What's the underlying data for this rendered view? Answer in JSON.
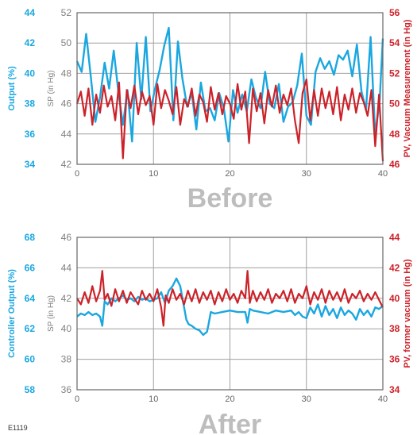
{
  "figure_code": "E1119",
  "colors": {
    "output": "#1aa7e0",
    "pv": "#cc2229",
    "sp_axis": "#808080",
    "grid": "#a0a0a0",
    "heading": "#bdbdbd",
    "frame": "#666666"
  },
  "chart_data": [
    {
      "type": "line",
      "title": "Before",
      "xlim": [
        0,
        40
      ],
      "x_ticks": [
        "0",
        "10",
        "20",
        "30",
        "40"
      ],
      "grid": true,
      "axes": {
        "left_outer": {
          "label": "Output (%)",
          "range": [
            34,
            44
          ],
          "ticks": [
            "34",
            "36",
            "38",
            "40",
            "42",
            "44"
          ]
        },
        "left_inner": {
          "label": "SP (in Hg)",
          "range": [
            42,
            52
          ],
          "ticks": [
            "42",
            "44",
            "46",
            "48",
            "50",
            "52"
          ]
        },
        "right": {
          "label": "PV, Vacuum Measurement (in Hg)",
          "range": [
            46,
            56
          ],
          "ticks": [
            "46",
            "48",
            "50",
            "52",
            "54",
            "56"
          ]
        }
      },
      "series": [
        {
          "axis": "left_outer",
          "color": "#1aa7e0",
          "x": [
            0,
            0.6,
            1.2,
            1.8,
            2.4,
            3,
            3.6,
            4.2,
            4.8,
            5.4,
            6,
            6.6,
            7.2,
            7.8,
            8.4,
            9,
            9.6,
            10.2,
            10.8,
            11.4,
            12,
            12.6,
            13.2,
            13.8,
            14.4,
            15,
            15.6,
            16.2,
            16.8,
            17.4,
            18,
            18.6,
            19.2,
            19.8,
            20.4,
            21,
            21.6,
            22.2,
            22.8,
            23.4,
            24,
            24.6,
            25.2,
            25.8,
            26.4,
            27,
            27.6,
            28.2,
            28.8,
            29.4,
            30,
            30.6,
            31.2,
            31.8,
            32.4,
            33,
            33.6,
            34.2,
            34.8,
            35.4,
            36,
            36.6,
            37.2,
            37.8,
            38.4,
            39,
            39.6,
            40
          ],
          "values": [
            40.8,
            40.1,
            42.6,
            39.8,
            36.8,
            38.4,
            40.7,
            39.0,
            41.5,
            38.8,
            36.6,
            38.9,
            35.5,
            42.0,
            38.3,
            42.4,
            37.5,
            39.0,
            40.2,
            41.8,
            43.0,
            36.9,
            42.1,
            39.6,
            37.8,
            38.7,
            36.3,
            39.4,
            37.5,
            37.7,
            36.9,
            38.7,
            37.7,
            35.5,
            38.9,
            37.4,
            38.6,
            37.5,
            39.6,
            38.4,
            37.7,
            40.1,
            38.0,
            37.7,
            39.3,
            36.8,
            37.8,
            38.1,
            39.2,
            41.3,
            37.2,
            36.6,
            40.1,
            41.0,
            40.3,
            40.8,
            39.9,
            41.2,
            40.9,
            41.5,
            39.8,
            41.9,
            38.8,
            37.6,
            42.4,
            35.9,
            38.3,
            42.3
          ]
        },
        {
          "axis": "right",
          "color": "#cc2229",
          "x": [
            0,
            0.5,
            1,
            1.5,
            2,
            2.5,
            3,
            3.5,
            4,
            4.5,
            5,
            5.5,
            6,
            6.5,
            7,
            7.5,
            8,
            8.5,
            9,
            9.5,
            10,
            10.5,
            11,
            11.5,
            12,
            12.5,
            13,
            13.5,
            14,
            14.5,
            15,
            15.5,
            16,
            16.5,
            17,
            17.5,
            18,
            18.5,
            19,
            19.5,
            20,
            20.5,
            21,
            21.5,
            22,
            22.5,
            23,
            23.5,
            24,
            24.5,
            25,
            25.5,
            26,
            26.5,
            27,
            27.5,
            28,
            28.5,
            29,
            29.5,
            30,
            30.5,
            31,
            31.5,
            32,
            32.5,
            33,
            33.5,
            34,
            34.5,
            35,
            35.5,
            36,
            36.5,
            37,
            37.5,
            38,
            38.5,
            39,
            39.5,
            40
          ],
          "values": [
            50.0,
            50.8,
            49.2,
            51.0,
            48.6,
            50.6,
            49.4,
            51.2,
            49.8,
            50.5,
            48.9,
            51.4,
            46.4,
            50.9,
            49.7,
            51.2,
            49.3,
            50.8,
            49.9,
            50.5,
            48.6,
            51.3,
            49.7,
            50.9,
            50.2,
            49.3,
            51.1,
            48.6,
            50.3,
            49.8,
            51.0,
            49.2,
            50.6,
            50.1,
            48.8,
            51.1,
            49.6,
            50.7,
            49.3,
            50.5,
            50.0,
            49.0,
            51.3,
            49.6,
            50.8,
            47.4,
            51.0,
            49.5,
            50.7,
            48.7,
            50.9,
            49.8,
            51.2,
            49.4,
            50.6,
            49.9,
            51.0,
            48.9,
            47.4,
            50.7,
            51.6,
            48.9,
            50.9,
            49.2,
            51.0,
            49.7,
            50.8,
            49.3,
            51.1,
            48.9,
            50.6,
            49.6,
            51.0,
            49.4,
            50.7,
            50.1,
            49.2,
            50.9,
            47.2,
            50.6,
            46.2
          ]
        }
      ]
    },
    {
      "type": "line",
      "title": "After",
      "xlim": [
        0,
        40
      ],
      "x_ticks": [
        "0",
        "10",
        "20",
        "30",
        "40"
      ],
      "grid": true,
      "axes": {
        "left_outer": {
          "label": "Controller Output (%)",
          "range": [
            58,
            68
          ],
          "ticks": [
            "58",
            "60",
            "62",
            "64",
            "66",
            "68"
          ]
        },
        "left_inner": {
          "label": "SP (in Hg)",
          "range": [
            36,
            46
          ],
          "ticks": [
            "36",
            "38",
            "40",
            "42",
            "44",
            "46"
          ]
        },
        "right": {
          "label": "PV, former vacuum (in Hg)",
          "range": [
            34,
            44
          ],
          "ticks": [
            "34",
            "36",
            "38",
            "40",
            "42",
            "44"
          ]
        }
      },
      "series": [
        {
          "axis": "left_outer",
          "color": "#1aa7e0",
          "x": [
            0,
            0.5,
            1,
            1.5,
            2,
            2.5,
            3,
            3.3,
            3.6,
            4,
            4.5,
            5,
            5.5,
            6,
            6.5,
            7,
            7.5,
            8,
            8.5,
            9,
            9.5,
            10,
            10.5,
            11,
            11.5,
            12,
            12.5,
            13,
            13.5,
            14,
            14.3,
            14.6,
            15,
            15.5,
            16,
            16.5,
            17,
            17.2,
            17.5,
            18,
            19,
            20,
            21,
            22,
            22.3,
            22.6,
            23,
            24,
            25,
            26,
            27,
            28,
            28.5,
            29,
            29.5,
            30,
            30.5,
            31,
            31.5,
            32,
            32.5,
            33,
            33.5,
            34,
            34.5,
            35,
            35.5,
            36,
            36.5,
            37,
            37.5,
            38,
            38.5,
            39,
            39.5,
            40
          ],
          "values": [
            62.8,
            63.0,
            62.9,
            63.1,
            62.9,
            63.0,
            62.8,
            62.2,
            63.8,
            63.6,
            64.0,
            63.8,
            64.0,
            64.2,
            63.9,
            64.0,
            63.8,
            64.1,
            63.9,
            64.0,
            63.8,
            63.9,
            64.0,
            64.4,
            63.7,
            64.5,
            64.8,
            65.3,
            64.8,
            63.4,
            62.6,
            62.3,
            62.2,
            62.0,
            61.9,
            61.6,
            61.8,
            62.3,
            63.1,
            63.0,
            63.1,
            63.2,
            63.1,
            63.1,
            62.4,
            63.3,
            63.2,
            63.1,
            63.0,
            63.2,
            63.1,
            63.2,
            62.9,
            63.1,
            62.8,
            62.7,
            63.4,
            63.0,
            63.6,
            62.8,
            63.5,
            62.9,
            63.3,
            62.7,
            63.4,
            62.9,
            63.2,
            63.0,
            62.6,
            63.3,
            62.9,
            63.2,
            62.8,
            63.4,
            63.3,
            63.5
          ]
        },
        {
          "axis": "right",
          "color": "#cc2229",
          "x": [
            0,
            0.5,
            1,
            1.5,
            2,
            2.5,
            3,
            3.3,
            3.6,
            4,
            4.5,
            5,
            5.5,
            6,
            6.5,
            7,
            7.5,
            8,
            8.5,
            9,
            9.5,
            10,
            10.5,
            11,
            11.3,
            11.6,
            12,
            12.5,
            13,
            13.5,
            14,
            14.5,
            15,
            15.5,
            16,
            16.5,
            17,
            17.5,
            18,
            18.5,
            19,
            19.5,
            20,
            20.5,
            21,
            21.5,
            22,
            22.3,
            22.6,
            23,
            23.5,
            24,
            24.5,
            25,
            25.5,
            26,
            26.5,
            27,
            27.5,
            28,
            28.5,
            29,
            29.5,
            30,
            30.5,
            31,
            31.5,
            32,
            32.5,
            33,
            33.5,
            34,
            34.5,
            35,
            35.5,
            36,
            36.5,
            37,
            37.5,
            38,
            38.5,
            39,
            39.5,
            40
          ],
          "values": [
            40.0,
            39.6,
            40.4,
            39.7,
            40.8,
            39.8,
            40.5,
            41.8,
            39.9,
            40.3,
            39.5,
            40.6,
            39.8,
            40.5,
            39.7,
            40.4,
            40.0,
            39.6,
            40.5,
            39.9,
            40.3,
            39.8,
            40.6,
            39.4,
            38.2,
            40.2,
            39.7,
            40.6,
            39.9,
            40.3,
            39.6,
            40.5,
            39.8,
            40.6,
            39.7,
            40.4,
            39.9,
            40.5,
            39.6,
            40.4,
            39.8,
            40.6,
            39.9,
            40.3,
            39.7,
            40.5,
            40.0,
            41.8,
            39.7,
            40.5,
            39.8,
            40.4,
            39.9,
            40.6,
            39.7,
            40.3,
            40.0,
            40.5,
            39.8,
            40.6,
            39.7,
            40.3,
            40.0,
            40.8,
            39.6,
            40.4,
            39.9,
            40.6,
            39.7,
            40.5,
            39.9,
            40.4,
            39.8,
            40.6,
            39.7,
            40.3,
            40.0,
            40.5,
            39.8,
            40.3,
            39.9,
            40.4,
            39.9,
            39.4
          ]
        }
      ]
    }
  ]
}
